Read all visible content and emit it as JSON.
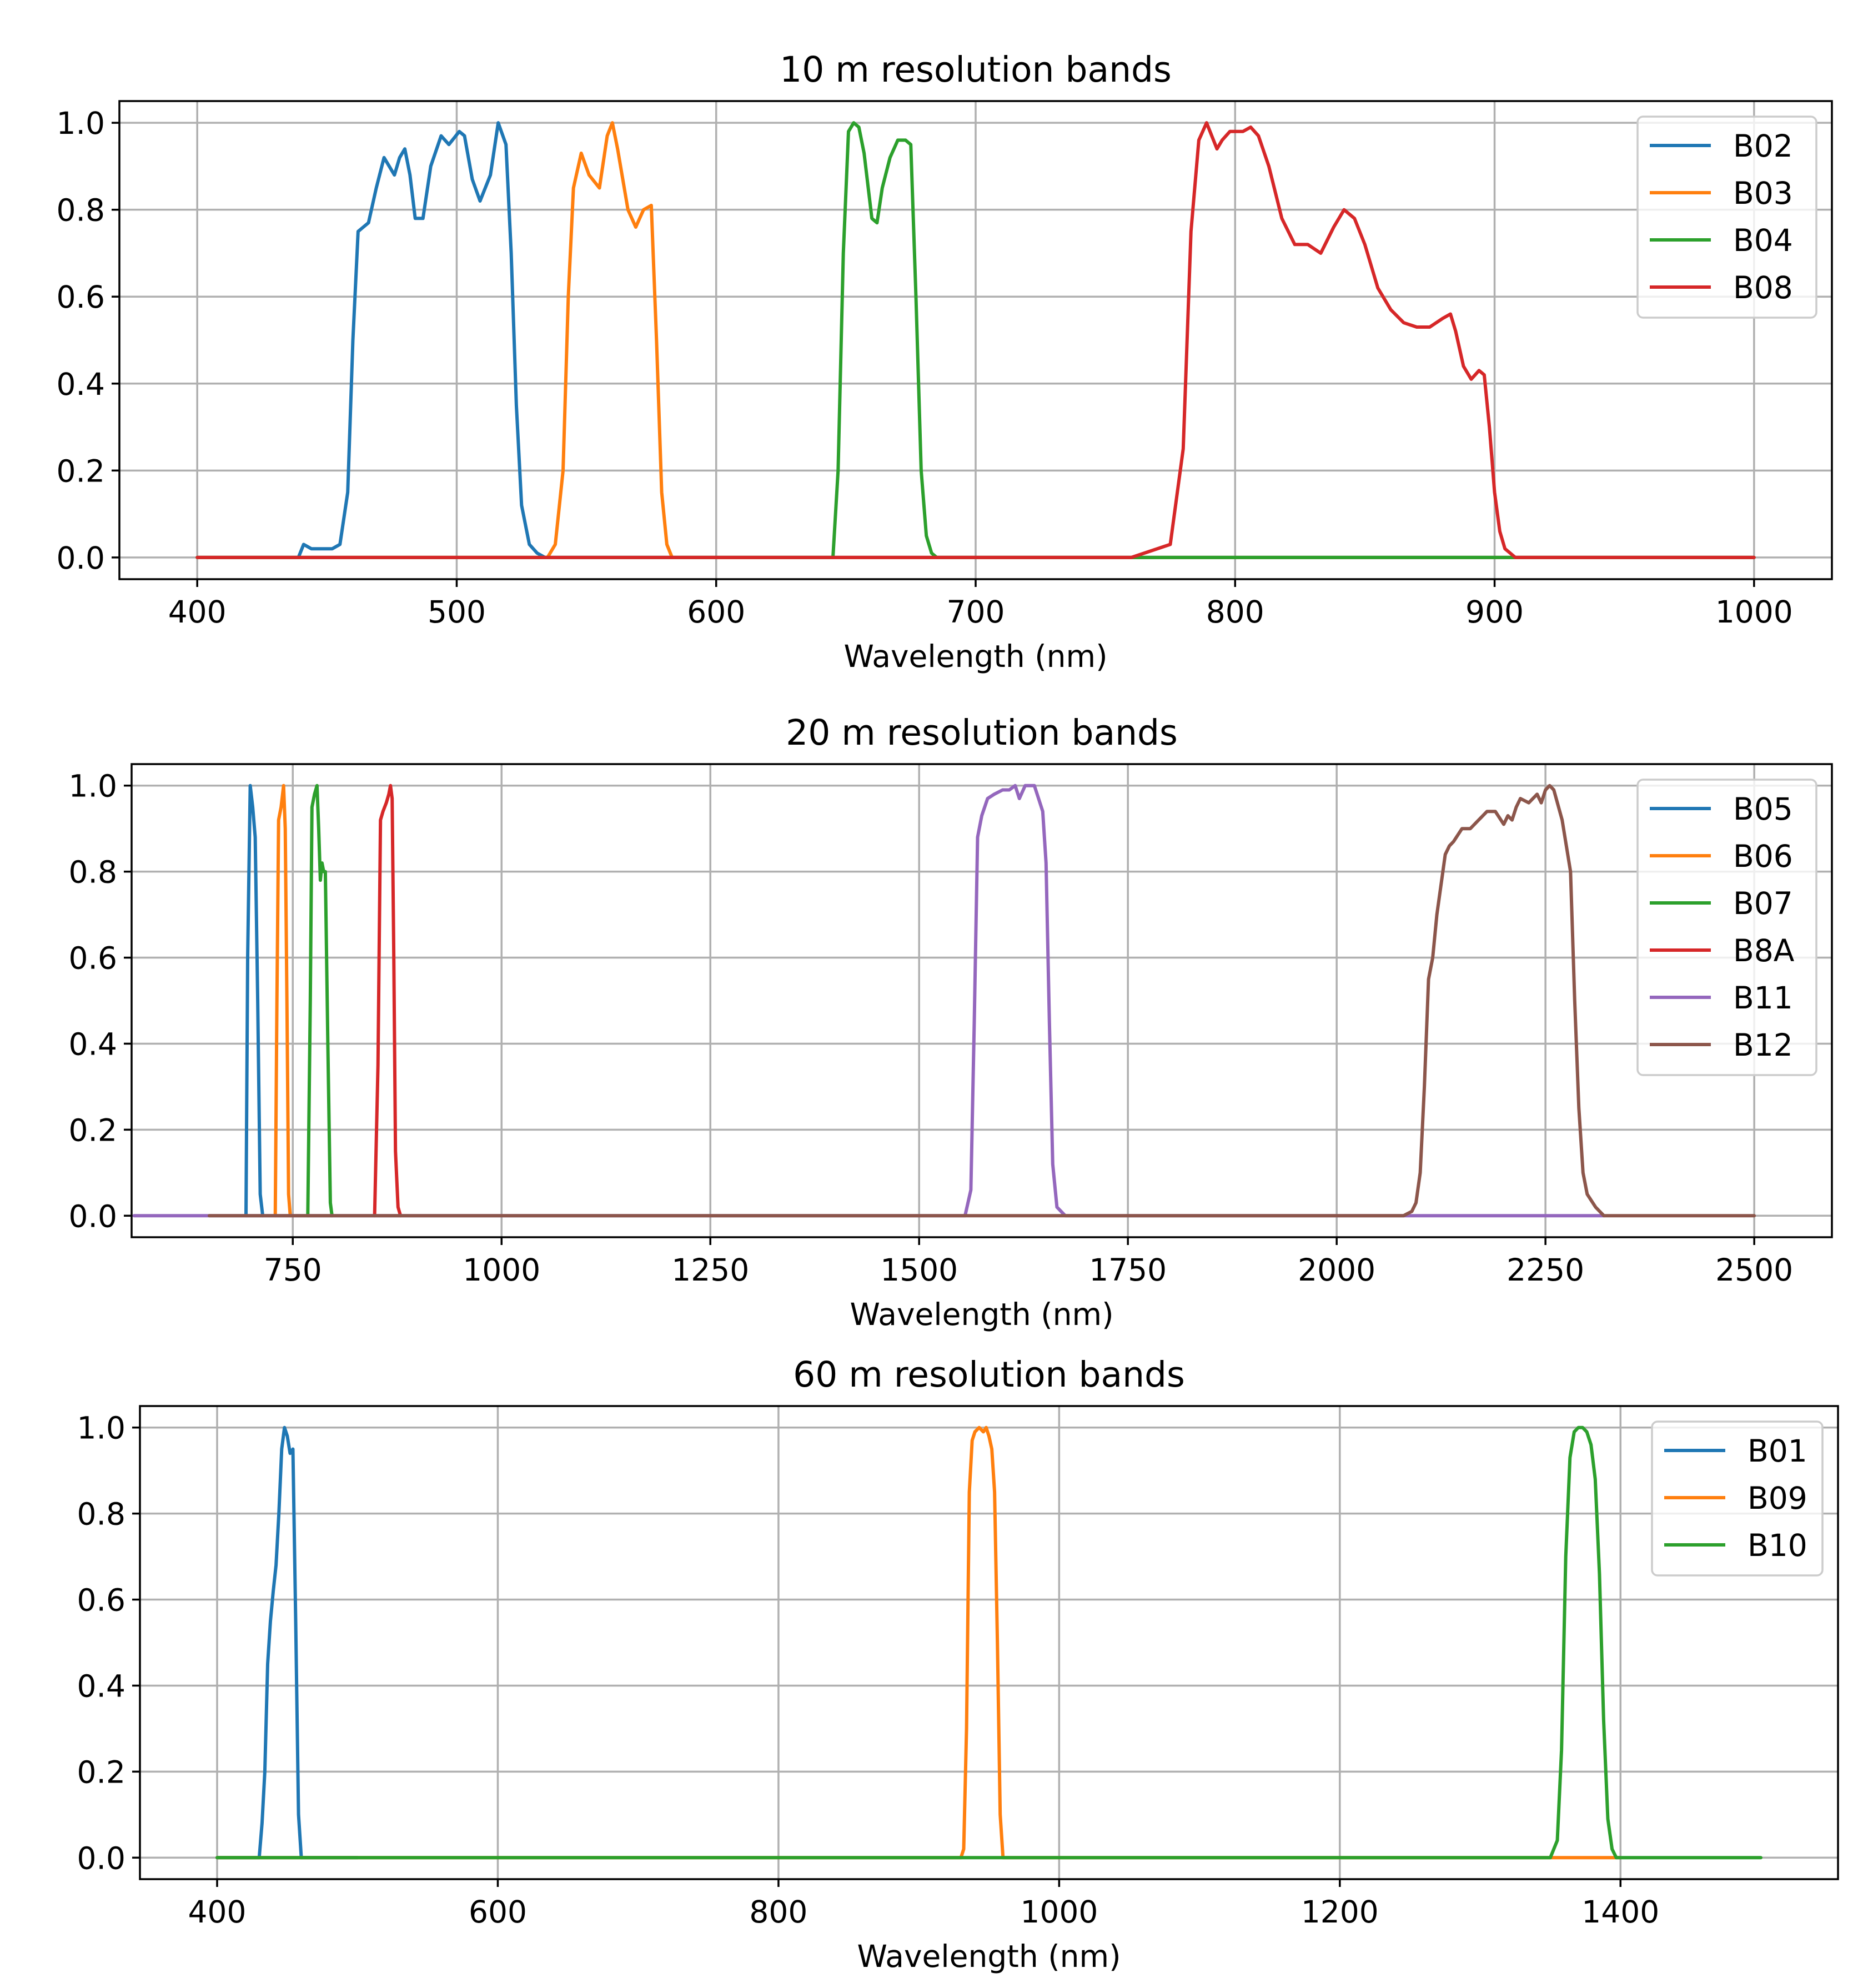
{
  "chart_data": [
    {
      "type": "line",
      "title": "10 m resolution bands",
      "xlabel": "Wavelength (nm)",
      "ylabel": "",
      "xlim": [
        370,
        1030
      ],
      "ylim": [
        -0.05,
        1.05
      ],
      "xticks": [
        400,
        500,
        600,
        700,
        800,
        900,
        1000
      ],
      "xtick_labels": [
        "400",
        "500",
        "600",
        "700",
        "800",
        "900",
        "1000"
      ],
      "yticks": [
        0.0,
        0.2,
        0.4,
        0.6,
        0.8,
        1.0
      ],
      "ytick_labels": [
        "0.0",
        "0.2",
        "0.4",
        "0.6",
        "0.8",
        "1.0"
      ],
      "grid": true,
      "legend_position": "top-right",
      "series": [
        {
          "name": "B02",
          "color": "#1f77b4",
          "x": [
            400,
            439,
            441,
            444,
            447,
            452,
            455,
            458,
            460,
            462,
            464,
            466,
            469,
            472,
            476,
            478,
            480,
            482,
            484,
            487,
            490,
            494,
            497,
            501,
            503,
            506,
            509,
            513,
            516,
            519,
            521,
            523,
            525,
            528,
            531,
            534,
            1000
          ],
          "y": [
            0,
            0,
            0.03,
            0.02,
            0.02,
            0.02,
            0.03,
            0.15,
            0.5,
            0.75,
            0.76,
            0.77,
            0.85,
            0.92,
            0.88,
            0.92,
            0.94,
            0.88,
            0.78,
            0.78,
            0.9,
            0.97,
            0.95,
            0.98,
            0.97,
            0.87,
            0.82,
            0.88,
            1.0,
            0.95,
            0.7,
            0.35,
            0.12,
            0.03,
            0.01,
            0,
            0
          ]
        },
        {
          "name": "B03",
          "color": "#ff7f0e",
          "x": [
            400,
            535,
            538,
            541,
            543,
            545,
            548,
            551,
            555,
            558,
            560,
            562,
            566,
            569,
            572,
            575,
            577,
            579,
            581,
            583,
            1000
          ],
          "y": [
            0,
            0,
            0.03,
            0.2,
            0.6,
            0.85,
            0.93,
            0.88,
            0.85,
            0.97,
            1.0,
            0.94,
            0.8,
            0.76,
            0.8,
            0.81,
            0.5,
            0.15,
            0.03,
            0,
            0
          ]
        },
        {
          "name": "B04",
          "color": "#2ca02c",
          "x": [
            400,
            645,
            647,
            649,
            651,
            653,
            655,
            657,
            660,
            662,
            664,
            667,
            670,
            673,
            675,
            677,
            679,
            681,
            683,
            685,
            905,
            1000
          ],
          "y": [
            0,
            0,
            0.2,
            0.7,
            0.98,
            1.0,
            0.99,
            0.93,
            0.78,
            0.77,
            0.85,
            0.92,
            0.96,
            0.96,
            0.95,
            0.6,
            0.2,
            0.05,
            0.01,
            0,
            0,
            0
          ]
        },
        {
          "name": "B08",
          "color": "#d62728",
          "x": [
            400,
            760,
            775,
            780,
            783,
            786,
            789,
            791,
            793,
            795,
            798,
            800,
            803,
            806,
            809,
            813,
            818,
            823,
            828,
            833,
            838,
            842,
            846,
            850,
            855,
            860,
            865,
            870,
            875,
            880,
            883,
            885,
            888,
            891,
            894,
            896,
            898,
            900,
            902,
            904,
            906,
            908,
            1000
          ],
          "y": [
            0,
            0,
            0.03,
            0.25,
            0.75,
            0.96,
            1.0,
            0.97,
            0.94,
            0.96,
            0.98,
            0.98,
            0.98,
            0.99,
            0.97,
            0.9,
            0.78,
            0.72,
            0.72,
            0.7,
            0.76,
            0.8,
            0.78,
            0.72,
            0.62,
            0.57,
            0.54,
            0.53,
            0.53,
            0.55,
            0.56,
            0.52,
            0.44,
            0.41,
            0.43,
            0.42,
            0.3,
            0.15,
            0.06,
            0.02,
            0.01,
            0,
            0
          ]
        }
      ]
    },
    {
      "type": "line",
      "title": "20 m resolution bands",
      "xlabel": "Wavelength (nm)",
      "ylabel": "",
      "xlim": [
        557,
        2593
      ],
      "ylim": [
        -0.05,
        1.05
      ],
      "xticks": [
        750,
        1000,
        1250,
        1500,
        1750,
        2000,
        2250,
        2500
      ],
      "xtick_labels": [
        "750",
        "1000",
        "1250",
        "1500",
        "1750",
        "2000",
        "2250",
        "2500"
      ],
      "yticks": [
        0.0,
        0.2,
        0.4,
        0.6,
        0.8,
        1.0
      ],
      "ytick_labels": [
        "0.0",
        "0.2",
        "0.4",
        "0.6",
        "0.8",
        "1.0"
      ],
      "grid": true,
      "legend_position": "top-right",
      "series": [
        {
          "name": "B05",
          "color": "#1f77b4",
          "x": [
            694,
            696,
            699,
            702,
            705,
            708,
            711,
            714
          ],
          "y": [
            0,
            0.6,
            1.0,
            0.95,
            0.88,
            0.5,
            0.05,
            0
          ]
        },
        {
          "name": "B06",
          "color": "#ff7f0e",
          "x": [
            729,
            731,
            733,
            736,
            739,
            741,
            743,
            745,
            747
          ],
          "y": [
            0,
            0.5,
            0.92,
            0.95,
            1.0,
            0.9,
            0.5,
            0.05,
            0
          ]
        },
        {
          "name": "B07",
          "color": "#2ca02c",
          "x": [
            768,
            771,
            773,
            776,
            779,
            781,
            783,
            785,
            787,
            789,
            792,
            795,
            797
          ],
          "y": [
            0,
            0.5,
            0.95,
            0.98,
            1.0,
            0.9,
            0.78,
            0.82,
            0.8,
            0.8,
            0.4,
            0.03,
            0
          ]
        },
        {
          "name": "B8A",
          "color": "#d62728",
          "x": [
            848,
            852,
            855,
            858,
            862,
            865,
            867,
            869,
            871,
            873,
            876,
            879
          ],
          "y": [
            0,
            0.35,
            0.92,
            0.94,
            0.96,
            0.98,
            1.0,
            0.97,
            0.6,
            0.15,
            0.02,
            0
          ]
        },
        {
          "name": "B11",
          "color": "#9467bd",
          "x": [
            560,
            1555,
            1562,
            1566,
            1570,
            1575,
            1582,
            1590,
            1600,
            1608,
            1615,
            1620,
            1627,
            1632,
            1638,
            1643,
            1648,
            1652,
            1656,
            1660,
            1665,
            1670,
            1675,
            2320
          ],
          "y": [
            0,
            0,
            0.06,
            0.45,
            0.88,
            0.93,
            0.97,
            0.98,
            0.99,
            0.99,
            1.0,
            0.97,
            1.0,
            1.0,
            1.0,
            0.97,
            0.94,
            0.82,
            0.45,
            0.12,
            0.02,
            0.01,
            0,
            0
          ]
        },
        {
          "name": "B12",
          "color": "#8c564b",
          "x": [
            650,
            2080,
            2090,
            2095,
            2100,
            2105,
            2110,
            2115,
            2120,
            2130,
            2135,
            2140,
            2150,
            2160,
            2170,
            2180,
            2190,
            2200,
            2205,
            2210,
            2215,
            2220,
            2230,
            2240,
            2245,
            2250,
            2255,
            2260,
            2270,
            2280,
            2285,
            2290,
            2295,
            2300,
            2310,
            2320,
            2500
          ],
          "y": [
            0,
            0,
            0.01,
            0.03,
            0.1,
            0.3,
            0.55,
            0.6,
            0.7,
            0.84,
            0.86,
            0.87,
            0.9,
            0.9,
            0.92,
            0.94,
            0.94,
            0.91,
            0.93,
            0.92,
            0.95,
            0.97,
            0.96,
            0.98,
            0.96,
            0.99,
            1.0,
            0.99,
            0.92,
            0.8,
            0.5,
            0.25,
            0.1,
            0.05,
            0.02,
            0,
            0
          ]
        }
      ]
    },
    {
      "type": "line",
      "title": "60 m resolution bands",
      "xlabel": "Wavelength (nm)",
      "ylabel": "",
      "xlim": [
        345,
        1555
      ],
      "ylim": [
        -0.05,
        1.05
      ],
      "xticks": [
        400,
        600,
        800,
        1000,
        1200,
        1400
      ],
      "xtick_labels": [
        "400",
        "600",
        "800",
        "1000",
        "1200",
        "1400"
      ],
      "yticks": [
        0.0,
        0.2,
        0.4,
        0.6,
        0.8,
        1.0
      ],
      "ytick_labels": [
        "0.0",
        "0.2",
        "0.4",
        "0.6",
        "0.8",
        "1.0"
      ],
      "grid": true,
      "legend_position": "top-right",
      "series": [
        {
          "name": "B01",
          "color": "#1f77b4",
          "x": [
            400,
            430,
            432,
            434,
            436,
            438,
            440,
            442,
            444,
            446,
            448,
            450,
            452,
            454,
            456,
            458,
            460,
            500
          ],
          "y": [
            0,
            0,
            0.08,
            0.2,
            0.45,
            0.55,
            0.62,
            0.68,
            0.8,
            0.95,
            1.0,
            0.98,
            0.94,
            0.95,
            0.55,
            0.1,
            0,
            0
          ]
        },
        {
          "name": "B09",
          "color": "#ff7f0e",
          "x": [
            400,
            930,
            932,
            934,
            936,
            938,
            940,
            943,
            946,
            948,
            950,
            952,
            954,
            956,
            958,
            960,
            1395,
            1400
          ],
          "y": [
            0,
            0,
            0.02,
            0.3,
            0.85,
            0.97,
            0.99,
            1.0,
            0.99,
            1.0,
            0.98,
            0.95,
            0.85,
            0.5,
            0.1,
            0,
            0,
            0
          ]
        },
        {
          "name": "B10",
          "color": "#2ca02c",
          "x": [
            400,
            1350,
            1355,
            1358,
            1361,
            1364,
            1367,
            1370,
            1373,
            1376,
            1379,
            1382,
            1385,
            1388,
            1391,
            1394,
            1397,
            1500
          ],
          "y": [
            0,
            0,
            0.04,
            0.25,
            0.7,
            0.93,
            0.99,
            1.0,
            1.0,
            0.99,
            0.96,
            0.88,
            0.66,
            0.32,
            0.09,
            0.02,
            0,
            0
          ]
        }
      ]
    }
  ]
}
